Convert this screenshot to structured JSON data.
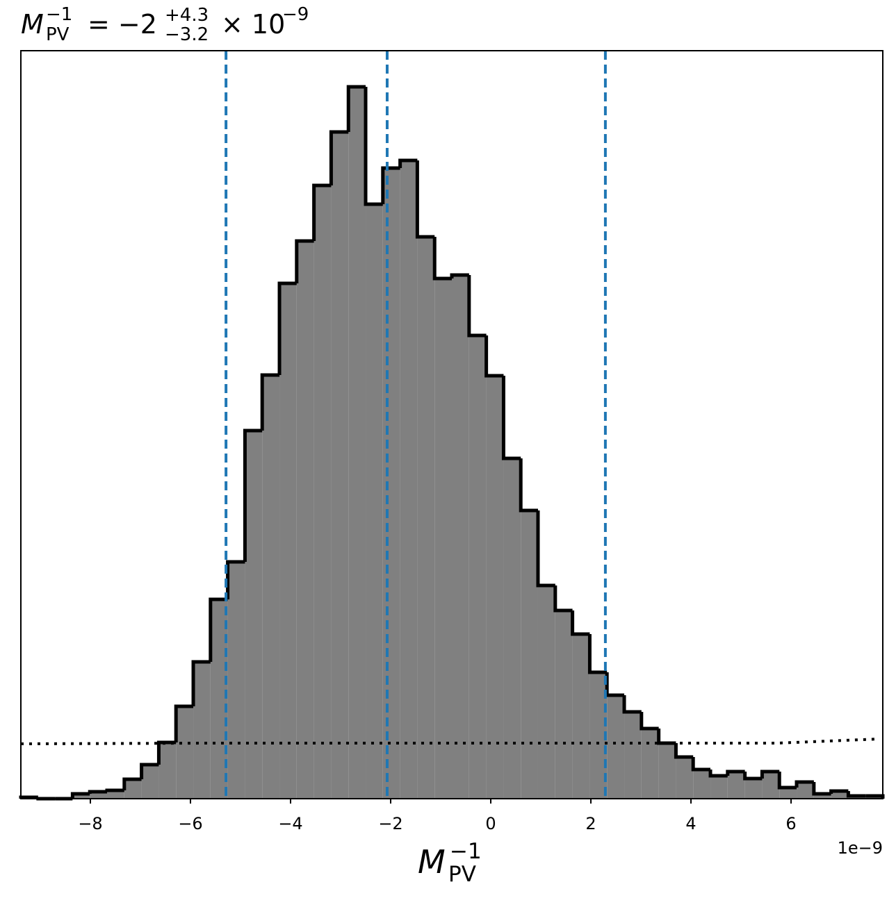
{
  "chart_data": {
    "type": "histogram",
    "title": {
      "symbol": "M",
      "sub": "PV",
      "sup": "−1",
      "main": "= −2",
      "upper": "+4.3",
      "lower": "−3.2",
      "tail": "× 10",
      "exp": "−9"
    },
    "xlabel": {
      "symbol": "M",
      "sub": "PV",
      "sup": "−1"
    },
    "offset_text": "1e−9",
    "bins": [
      -9.389,
      -9.044,
      -8.7,
      -8.356,
      -8.011,
      -7.667,
      -7.322,
      -6.978,
      -6.633,
      -6.289,
      -5.944,
      -5.6,
      -5.256,
      -4.911,
      -4.567,
      -4.222,
      -3.878,
      -3.533,
      -3.189,
      -2.844,
      -2.5,
      -2.156,
      -1.811,
      -1.467,
      -1.122,
      -0.778,
      -0.433,
      -0.089,
      0.256,
      0.6,
      0.944,
      1.289,
      1.633,
      1.978,
      2.322,
      2.667,
      3.011,
      3.356,
      3.7,
      4.044,
      4.389,
      4.733,
      5.078,
      5.422,
      5.767,
      6.111,
      6.456,
      6.8,
      7.144,
      7.489,
      7.833
    ],
    "values": [
      2,
      0,
      0,
      7,
      10,
      12,
      28,
      49,
      81,
      133,
      197,
      287,
      341,
      530,
      610,
      742,
      803,
      883,
      960,
      1025,
      856,
      908,
      919,
      809,
      749,
      754,
      667,
      609,
      490,
      415,
      307,
      271,
      237,
      182,
      149,
      125,
      101,
      80,
      60,
      42,
      33,
      39,
      29,
      39,
      16,
      24,
      7,
      11,
      4,
      4
    ],
    "color": "#808080",
    "edge_color": "#000000",
    "quantile_lines": [
      -5.29,
      -2.07,
      2.29
    ],
    "quantile_color": "#1f77b4",
    "prior": {
      "x": [
        -9.389,
        -5.64,
        5.72,
        7.764
      ],
      "values": [
        79,
        80,
        80,
        86
      ],
      "color": "#000000"
    },
    "xlim": [
      -9.389,
      7.833
    ],
    "ylim": [
      0,
      1077
    ],
    "xticks": [
      {
        "value": -8,
        "label": "−8"
      },
      {
        "value": -6,
        "label": "−6"
      },
      {
        "value": -4,
        "label": "−4"
      },
      {
        "value": -2,
        "label": "−2"
      },
      0,
      2,
      4,
      6
    ]
  }
}
